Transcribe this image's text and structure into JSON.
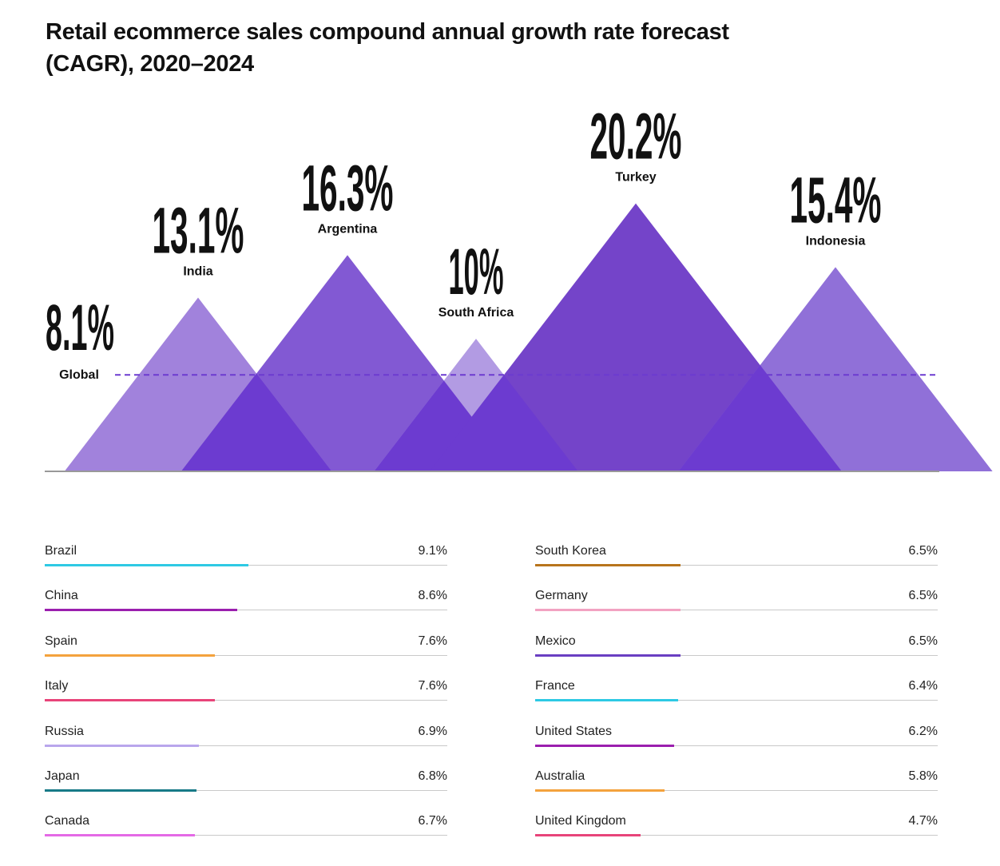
{
  "chart_data": {
    "type": "bar",
    "title": "Retail ecommerce sales compound annual growth rate forecast (CAGR), 2020–2024",
    "unit": "%",
    "global": {
      "name": "Global",
      "value": 8.1,
      "label": "8.1%"
    },
    "peaks": [
      {
        "name": "India",
        "value": 13.1,
        "label": "13.1%",
        "color": "#a182dc"
      },
      {
        "name": "Argentina",
        "value": 16.3,
        "label": "16.3%",
        "color": "#8259d3"
      },
      {
        "name": "South Africa",
        "value": 10,
        "label": "10%",
        "color": "#b29be3"
      },
      {
        "name": "Turkey",
        "value": 20.2,
        "label": "20.2%",
        "color": "#7444c9"
      },
      {
        "name": "Indonesia",
        "value": 15.4,
        "label": "15.4%",
        "color": "#9070d8"
      }
    ],
    "overlap_color": "#6c3bd0",
    "reference_line_color": "#6c3bd0",
    "bar_scale_max": 18,
    "list_left": [
      {
        "name": "Brazil",
        "value": 9.1,
        "label": "9.1%",
        "color": "#2ec9e4"
      },
      {
        "name": "China",
        "value": 8.6,
        "label": "8.6%",
        "color": "#9b1fae"
      },
      {
        "name": "Spain",
        "value": 7.6,
        "label": "7.6%",
        "color": "#f4a23d"
      },
      {
        "name": "Italy",
        "value": 7.6,
        "label": "7.6%",
        "color": "#e8447a"
      },
      {
        "name": "Russia",
        "value": 6.9,
        "label": "6.9%",
        "color": "#b9a6ec"
      },
      {
        "name": "Japan",
        "value": 6.8,
        "label": "6.8%",
        "color": "#177a87"
      },
      {
        "name": "Canada",
        "value": 6.7,
        "label": "6.7%",
        "color": "#e46ae6"
      }
    ],
    "list_right": [
      {
        "name": "South Korea",
        "value": 6.5,
        "label": "6.5%",
        "color": "#b8741c"
      },
      {
        "name": "Germany",
        "value": 6.5,
        "label": "6.5%",
        "color": "#f2a2c2"
      },
      {
        "name": "Mexico",
        "value": 6.5,
        "label": "6.5%",
        "color": "#6a3fc2"
      },
      {
        "name": "France",
        "value": 6.4,
        "label": "6.4%",
        "color": "#2ec9e4"
      },
      {
        "name": "United States",
        "value": 6.2,
        "label": "6.2%",
        "color": "#9b1fae"
      },
      {
        "name": "Australia",
        "value": 5.8,
        "label": "5.8%",
        "color": "#f4a23d"
      },
      {
        "name": "United Kingdom",
        "value": 4.7,
        "label": "4.7%",
        "color": "#e8447a"
      }
    ]
  }
}
